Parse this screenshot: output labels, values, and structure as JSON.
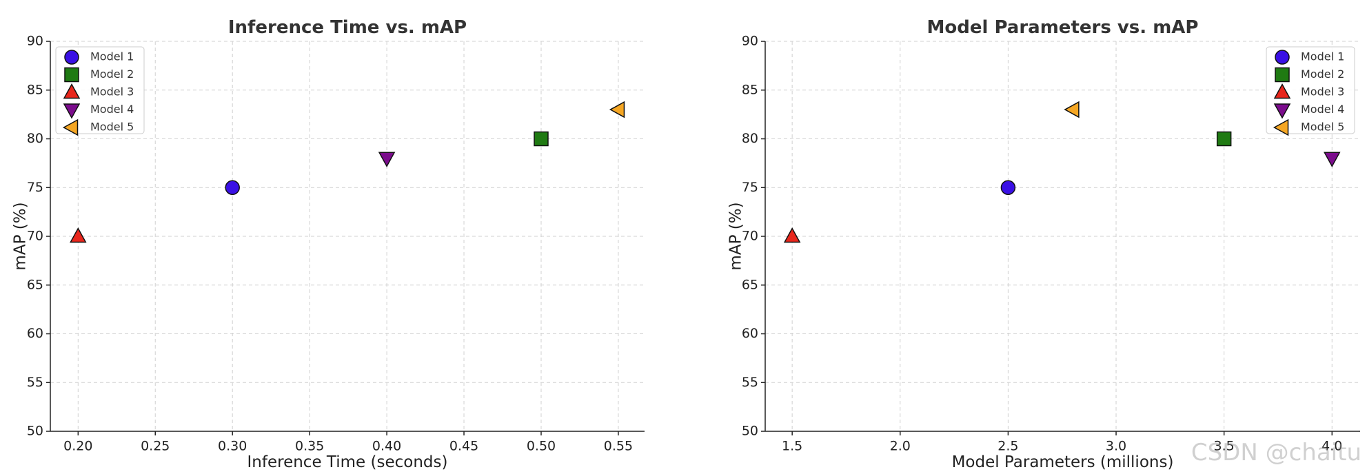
{
  "watermark": "CSDN @chaitu",
  "chart_data": [
    {
      "type": "scatter",
      "title": "Inference Time vs. mAP",
      "xlabel": "Inference Time (seconds)",
      "ylabel": "mAP (%)",
      "xlim": [
        0.182,
        0.567
      ],
      "ylim": [
        50,
        90
      ],
      "xticks": [
        "0.20",
        "0.25",
        "0.30",
        "0.35",
        "0.40",
        "0.45",
        "0.50",
        "0.55"
      ],
      "yticks": [
        "50",
        "55",
        "60",
        "65",
        "70",
        "75",
        "80",
        "85",
        "90"
      ],
      "grid": true,
      "legend_position": "top-left",
      "series": [
        {
          "name": "Model 1",
          "marker": "circle",
          "color": "#3a10e5",
          "x": [
            0.3
          ],
          "y": [
            75
          ]
        },
        {
          "name": "Model 2",
          "marker": "square",
          "color": "#1f7a12",
          "x": [
            0.5
          ],
          "y": [
            80
          ]
        },
        {
          "name": "Model 3",
          "marker": "triangle-up",
          "color": "#e8261c",
          "x": [
            0.2
          ],
          "y": [
            70
          ]
        },
        {
          "name": "Model 4",
          "marker": "triangle-down",
          "color": "#7b0c8c",
          "x": [
            0.4
          ],
          "y": [
            78
          ]
        },
        {
          "name": "Model 5",
          "marker": "triangle-left",
          "color": "#f5a623",
          "x": [
            0.55
          ],
          "y": [
            83
          ]
        }
      ]
    },
    {
      "type": "scatter",
      "title": "Model Parameters vs. mAP",
      "xlabel": "Model Parameters (millions)",
      "ylabel": "mAP (%)",
      "xlim": [
        1.375,
        4.13
      ],
      "ylim": [
        50,
        90
      ],
      "xticks": [
        "1.5",
        "2.0",
        "2.5",
        "3.0",
        "3.5",
        "4.0"
      ],
      "yticks": [
        "50",
        "55",
        "60",
        "65",
        "70",
        "75",
        "80",
        "85",
        "90"
      ],
      "grid": true,
      "legend_position": "top-right",
      "series": [
        {
          "name": "Model 1",
          "marker": "circle",
          "color": "#3a10e5",
          "x": [
            2.5
          ],
          "y": [
            75
          ]
        },
        {
          "name": "Model 2",
          "marker": "square",
          "color": "#1f7a12",
          "x": [
            3.5
          ],
          "y": [
            80
          ]
        },
        {
          "name": "Model 3",
          "marker": "triangle-up",
          "color": "#e8261c",
          "x": [
            1.5
          ],
          "y": [
            70
          ]
        },
        {
          "name": "Model 4",
          "marker": "triangle-down",
          "color": "#7b0c8c",
          "x": [
            4.0
          ],
          "y": [
            78
          ]
        },
        {
          "name": "Model 5",
          "marker": "triangle-left",
          "color": "#f5a623",
          "x": [
            2.8
          ],
          "y": [
            83
          ]
        }
      ]
    }
  ]
}
